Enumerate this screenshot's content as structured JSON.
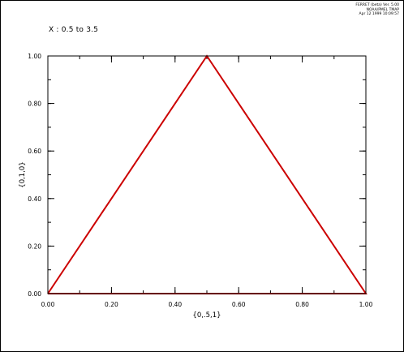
{
  "header": {
    "stamp_line1": "FERRET (beta) Ver. 5.00",
    "stamp_line2": "NOAA/PMEL TMAP",
    "stamp_line3": "Apr 12 1999 10:09:57",
    "subtitle": "X : 0.5 to 3.5"
  },
  "colors": {
    "series": "#cc0000",
    "axes": "#000000"
  },
  "chart_data": {
    "type": "line",
    "xlabel": "{0,.5,1}",
    "ylabel": "{0,1,0}",
    "xlim": [
      0,
      1
    ],
    "ylim": [
      0,
      1
    ],
    "x_ticks": [
      "0.00",
      "0.20",
      "0.40",
      "0.60",
      "0.80",
      "1.00"
    ],
    "y_ticks": [
      "0.00",
      "0.20",
      "0.40",
      "0.60",
      "0.80",
      "1.00"
    ],
    "x_tick_values": [
      0,
      0.2,
      0.4,
      0.6,
      0.8,
      1.0
    ],
    "y_tick_values": [
      0,
      0.2,
      0.4,
      0.6,
      0.8,
      1.0
    ],
    "x_minor_step": 0.1,
    "y_minor_step": 0.1,
    "grid": false,
    "series": [
      {
        "x": [
          0,
          0.5,
          1,
          0
        ],
        "y": [
          0,
          1,
          0,
          0
        ]
      }
    ]
  }
}
